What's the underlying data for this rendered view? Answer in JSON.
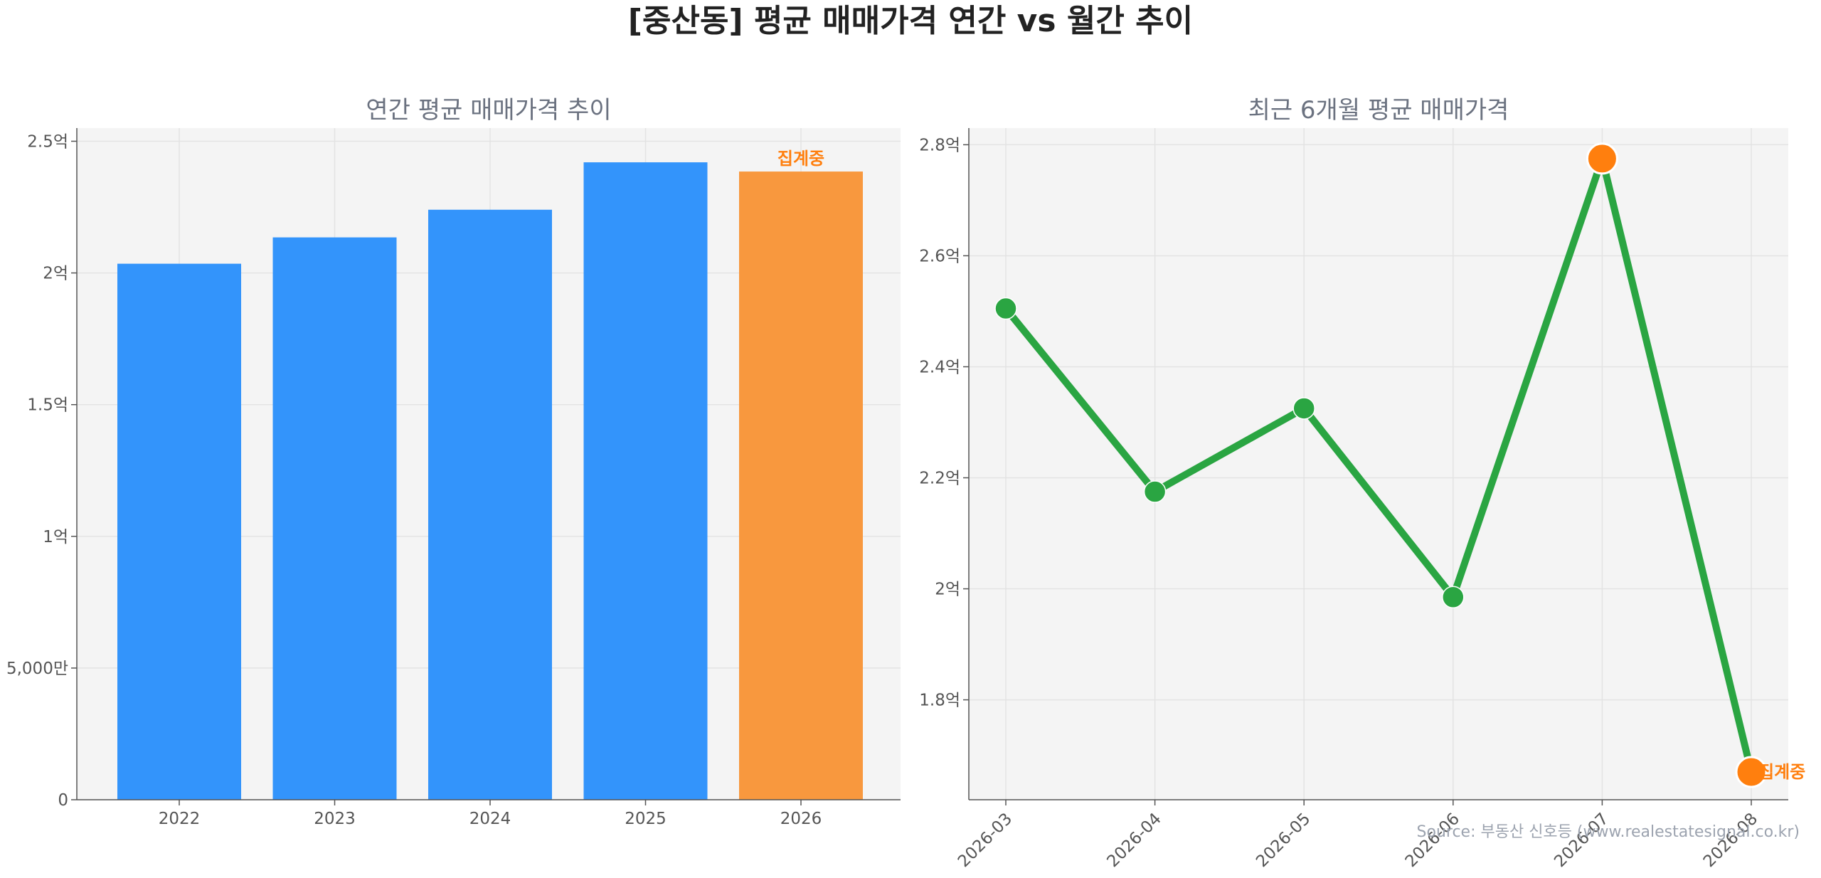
{
  "page": {
    "title": "[중산동] 평균 매매가격 연간 vs 월간 추이",
    "source": "Source: 부동산 신호등 (www.realestatesignal.co.kr)"
  },
  "colors": {
    "bar_blue": "#3394fb",
    "bar_orange": "#f8983e",
    "line_green": "#2aa542",
    "highlight_orange": "#ff7f0e",
    "panel_bg": "#f4f4f4",
    "note_text": "#ff7f0e"
  },
  "chart_data": [
    {
      "type": "bar",
      "title": "연간 평균 매매가격 추이",
      "categories": [
        "2022",
        "2023",
        "2024",
        "2025",
        "2026"
      ],
      "values": [
        20350,
        21350,
        22400,
        24200,
        23850
      ],
      "value_unit": "만원",
      "highlight_index": 4,
      "annotation": "집계중",
      "ylim": [
        0,
        25500
      ],
      "yticks": [
        {
          "value": 0,
          "label": "0"
        },
        {
          "value": 5000,
          "label": "5,000만"
        },
        {
          "value": 10000,
          "label": "1억"
        },
        {
          "value": 15000,
          "label": "1.5억"
        },
        {
          "value": 20000,
          "label": "2억"
        },
        {
          "value": 25000,
          "label": "2.5억"
        }
      ],
      "grid": true
    },
    {
      "type": "line",
      "title": "최근 6개월 평균 매매가격",
      "x": [
        "2026-03",
        "2026-04",
        "2026-05",
        "2026-06",
        "2026-07",
        "2026-08"
      ],
      "values": [
        25050,
        21750,
        23250,
        19850,
        27750,
        16700
      ],
      "value_unit": "만원",
      "highlight_indices": [
        4,
        5
      ],
      "annotation": "집계중",
      "ylim": [
        16200,
        28300
      ],
      "yticks": [
        {
          "value": 18000,
          "label": "1.8억"
        },
        {
          "value": 20000,
          "label": "2억"
        },
        {
          "value": 22000,
          "label": "2.2억"
        },
        {
          "value": 24000,
          "label": "2.4억"
        },
        {
          "value": 26000,
          "label": "2.6억"
        },
        {
          "value": 28000,
          "label": "2.8억"
        }
      ],
      "grid": true
    }
  ]
}
